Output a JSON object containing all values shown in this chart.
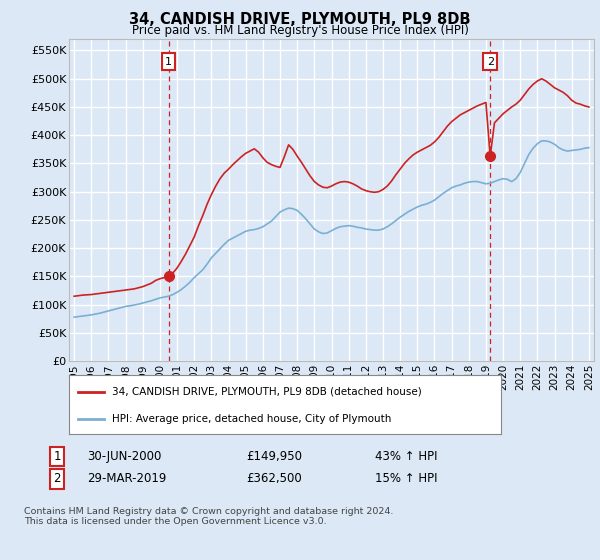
{
  "title": "34, CANDISH DRIVE, PLYMOUTH, PL9 8DB",
  "subtitle": "Price paid vs. HM Land Registry's House Price Index (HPI)",
  "ylabel_ticks": [
    "£0",
    "£50K",
    "£100K",
    "£150K",
    "£200K",
    "£250K",
    "£300K",
    "£350K",
    "£400K",
    "£450K",
    "£500K",
    "£550K"
  ],
  "ytick_values": [
    0,
    50000,
    100000,
    150000,
    200000,
    250000,
    300000,
    350000,
    400000,
    450000,
    500000,
    550000
  ],
  "ylim": [
    0,
    570000
  ],
  "xlim_start": 1994.7,
  "xlim_end": 2025.3,
  "sale1_date": 2000.5,
  "sale1_price": 149950,
  "sale2_date": 2019.25,
  "sale2_price": 362500,
  "background_color": "#dce8f5",
  "plot_bg_color": "#dce8f5",
  "grid_color": "#ffffff",
  "dashed_line_color": "#cc2222",
  "legend_label_red": "34, CANDISH DRIVE, PLYMOUTH, PL9 8DB (detached house)",
  "legend_label_blue": "HPI: Average price, detached house, City of Plymouth",
  "footer_text": "Contains HM Land Registry data © Crown copyright and database right 2024.\nThis data is licensed under the Open Government Licence v3.0.",
  "red_line_color": "#cc2222",
  "blue_line_color": "#7aafd4",
  "sale_marker_color": "#cc2222",
  "annotation_box_color": "#cc2222",
  "hpi_years": [
    1995.0,
    1995.25,
    1995.5,
    1995.75,
    1996.0,
    1996.25,
    1996.5,
    1996.75,
    1997.0,
    1997.25,
    1997.5,
    1997.75,
    1998.0,
    1998.25,
    1998.5,
    1998.75,
    1999.0,
    1999.25,
    1999.5,
    1999.75,
    2000.0,
    2000.25,
    2000.5,
    2000.75,
    2001.0,
    2001.25,
    2001.5,
    2001.75,
    2002.0,
    2002.25,
    2002.5,
    2002.75,
    2003.0,
    2003.25,
    2003.5,
    2003.75,
    2004.0,
    2004.25,
    2004.5,
    2004.75,
    2005.0,
    2005.25,
    2005.5,
    2005.75,
    2006.0,
    2006.25,
    2006.5,
    2006.75,
    2007.0,
    2007.25,
    2007.5,
    2007.75,
    2008.0,
    2008.25,
    2008.5,
    2008.75,
    2009.0,
    2009.25,
    2009.5,
    2009.75,
    2010.0,
    2010.25,
    2010.5,
    2010.75,
    2011.0,
    2011.25,
    2011.5,
    2011.75,
    2012.0,
    2012.25,
    2012.5,
    2012.75,
    2013.0,
    2013.25,
    2013.5,
    2013.75,
    2014.0,
    2014.25,
    2014.5,
    2014.75,
    2015.0,
    2015.25,
    2015.5,
    2015.75,
    2016.0,
    2016.25,
    2016.5,
    2016.75,
    2017.0,
    2017.25,
    2017.5,
    2017.75,
    2018.0,
    2018.25,
    2018.5,
    2018.75,
    2019.0,
    2019.25,
    2019.5,
    2019.75,
    2020.0,
    2020.25,
    2020.5,
    2020.75,
    2021.0,
    2021.25,
    2021.5,
    2021.75,
    2022.0,
    2022.25,
    2022.5,
    2022.75,
    2023.0,
    2023.25,
    2023.5,
    2023.75,
    2024.0,
    2024.25,
    2024.5,
    2024.75,
    2025.0
  ],
  "hpi_values": [
    78000,
    79000,
    80000,
    81000,
    82000,
    83500,
    85000,
    87000,
    89000,
    91000,
    93000,
    95000,
    97000,
    98000,
    99500,
    101000,
    103000,
    105000,
    107000,
    109500,
    112000,
    113500,
    115000,
    118000,
    122000,
    127000,
    133000,
    140000,
    148000,
    155000,
    162000,
    172000,
    183000,
    191000,
    199000,
    207000,
    214000,
    218000,
    222000,
    226000,
    230000,
    232000,
    233000,
    235000,
    238000,
    243000,
    248000,
    256000,
    264000,
    268000,
    271000,
    270000,
    267000,
    260000,
    252000,
    243000,
    234000,
    229000,
    226000,
    227000,
    231000,
    235000,
    238000,
    239000,
    240000,
    239000,
    237000,
    236000,
    234000,
    233000,
    232000,
    232000,
    234000,
    238000,
    243000,
    249000,
    255000,
    260000,
    265000,
    269000,
    273000,
    276000,
    278000,
    281000,
    285000,
    291000,
    297000,
    302000,
    307000,
    310000,
    312000,
    315000,
    317000,
    318000,
    318000,
    316000,
    314000,
    315000,
    318000,
    321000,
    323000,
    322000,
    318000,
    323000,
    334000,
    350000,
    366000,
    377000,
    385000,
    390000,
    390000,
    388000,
    384000,
    378000,
    374000,
    372000,
    373000,
    374000,
    375000,
    377000,
    378000
  ],
  "prop_years": [
    1995.0,
    1995.25,
    1995.5,
    1995.75,
    1996.0,
    1996.25,
    1996.5,
    1996.75,
    1997.0,
    1997.25,
    1997.5,
    1997.75,
    1998.0,
    1998.25,
    1998.5,
    1998.75,
    1999.0,
    1999.25,
    1999.5,
    1999.75,
    2000.0,
    2000.25,
    2000.5,
    2000.75,
    2001.0,
    2001.25,
    2001.5,
    2001.75,
    2002.0,
    2002.25,
    2002.5,
    2002.75,
    2003.0,
    2003.25,
    2003.5,
    2003.75,
    2004.0,
    2004.25,
    2004.5,
    2004.75,
    2005.0,
    2005.25,
    2005.5,
    2005.75,
    2006.0,
    2006.25,
    2006.5,
    2006.75,
    2007.0,
    2007.25,
    2007.5,
    2007.75,
    2008.0,
    2008.25,
    2008.5,
    2008.75,
    2009.0,
    2009.25,
    2009.5,
    2009.75,
    2010.0,
    2010.25,
    2010.5,
    2010.75,
    2011.0,
    2011.25,
    2011.5,
    2011.75,
    2012.0,
    2012.25,
    2012.5,
    2012.75,
    2013.0,
    2013.25,
    2013.5,
    2013.75,
    2014.0,
    2014.25,
    2014.5,
    2014.75,
    2015.0,
    2015.25,
    2015.5,
    2015.75,
    2016.0,
    2016.25,
    2016.5,
    2016.75,
    2017.0,
    2017.25,
    2017.5,
    2017.75,
    2018.0,
    2018.25,
    2018.5,
    2018.75,
    2019.0,
    2019.25,
    2019.5,
    2019.75,
    2020.0,
    2020.25,
    2020.5,
    2020.75,
    2021.0,
    2021.25,
    2021.5,
    2021.75,
    2022.0,
    2022.25,
    2022.5,
    2022.75,
    2023.0,
    2023.25,
    2023.5,
    2023.75,
    2024.0,
    2024.25,
    2024.5,
    2024.75,
    2025.0
  ],
  "prop_values": [
    115000,
    116000,
    117000,
    117500,
    118000,
    119000,
    120000,
    121000,
    122000,
    123000,
    124000,
    125000,
    126000,
    127000,
    128000,
    130000,
    132000,
    135000,
    138000,
    143000,
    146000,
    148000,
    149950,
    156000,
    165000,
    177000,
    190000,
    205000,
    220000,
    240000,
    258000,
    278000,
    295000,
    310000,
    323000,
    333000,
    340000,
    348000,
    355000,
    362000,
    368000,
    372000,
    376000,
    370000,
    360000,
    352000,
    348000,
    345000,
    343000,
    362000,
    383000,
    375000,
    363000,
    352000,
    340000,
    328000,
    318000,
    312000,
    308000,
    307000,
    310000,
    314000,
    317000,
    318000,
    317000,
    314000,
    310000,
    305000,
    302000,
    300000,
    299000,
    300000,
    304000,
    310000,
    319000,
    330000,
    340000,
    350000,
    358000,
    365000,
    370000,
    374000,
    378000,
    382000,
    388000,
    396000,
    406000,
    416000,
    424000,
    430000,
    436000,
    440000,
    444000,
    448000,
    452000,
    455000,
    458000,
    362500,
    422000,
    430000,
    438000,
    444000,
    450000,
    455000,
    462000,
    472000,
    482000,
    490000,
    496000,
    500000,
    496000,
    490000,
    484000,
    480000,
    476000,
    470000,
    462000,
    457000,
    455000,
    452000,
    450000
  ]
}
